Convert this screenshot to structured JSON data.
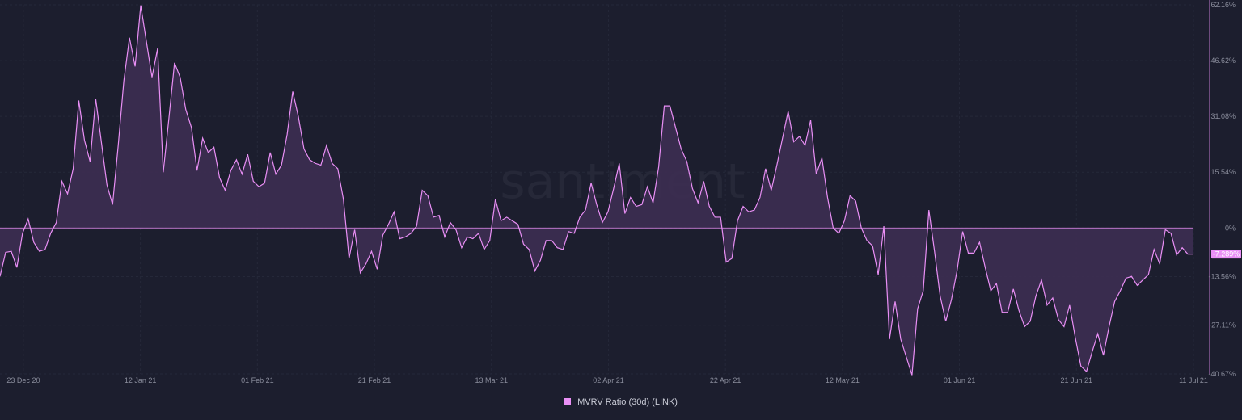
{
  "chart_data": {
    "type": "area",
    "title": "",
    "watermark": "santiment",
    "xlabel": "",
    "ylabel": "",
    "ylim": [
      -40.67,
      62.16
    ],
    "y_ticks": [
      "62.16%",
      "46.62%",
      "31.08%",
      "15.54%",
      "0%",
      "-13.56%",
      "-27.11%",
      "-40.67%"
    ],
    "y_tick_values": [
      62.16,
      46.62,
      31.08,
      15.54,
      0,
      -13.56,
      -27.11,
      -40.67
    ],
    "x_ticks": [
      "23 Dec 20",
      "12 Jan 21",
      "01 Feb 21",
      "21 Feb 21",
      "13 Mar 21",
      "02 Apr 21",
      "22 Apr 21",
      "12 May 21",
      "01 Jun 21",
      "21 Jun 21",
      "11 Jul 21"
    ],
    "x_start": "2020-12-19",
    "x_end": "2021-07-11",
    "last_value_label": "-7.289%",
    "colors": {
      "line": "#e98ff5",
      "fill": "#3d2d52",
      "badge": "#e98ff5"
    },
    "series": [
      {
        "name": "MVRV Ratio (30d) (LINK)",
        "values": [
          -13.5,
          -6.8,
          -6.5,
          -11,
          -1.5,
          2.5,
          -4,
          -6.5,
          -6,
          -1.5,
          1.5,
          13,
          9.5,
          16.5,
          35.5,
          24.5,
          18.5,
          36,
          24,
          12,
          6.5,
          23,
          41,
          53,
          45,
          62,
          52,
          42,
          50,
          15.5,
          30.5,
          46,
          42,
          33,
          28,
          16,
          25,
          21,
          22.5,
          14,
          10.5,
          16,
          19,
          15,
          20.5,
          13,
          11.5,
          12.5,
          21,
          15,
          17.5,
          26,
          38,
          31,
          22,
          19,
          18,
          17.5,
          23,
          18,
          16.5,
          8,
          -8.5,
          -0.5,
          -12.5,
          -10,
          -6.5,
          -11.5,
          -2,
          1,
          4.5,
          -3,
          -2.5,
          -1.5,
          0.5,
          10.5,
          9,
          3,
          3.5,
          -2.5,
          1.5,
          -0.5,
          -5.5,
          -2.5,
          -3,
          -1.5,
          -6,
          -3.5,
          8,
          2,
          3,
          2,
          1,
          -4.5,
          -6,
          -12,
          -9,
          -3.5,
          -3.5,
          -5.5,
          -6,
          -1,
          -1.5,
          3,
          5,
          12.5,
          6.5,
          1.5,
          4.5,
          11,
          18,
          4,
          8.5,
          6,
          6.5,
          11.5,
          7,
          17,
          34,
          34,
          28,
          22,
          18.5,
          11,
          7,
          13,
          6,
          3,
          3,
          -9.5,
          -8.5,
          2,
          6,
          4.5,
          5,
          8.5,
          16.5,
          10.5,
          17.5,
          25,
          32.5,
          24,
          25.5,
          23,
          30,
          15,
          19.5,
          8.5,
          0,
          -1.5,
          2,
          9,
          7.5,
          0,
          -3.5,
          -5,
          -13,
          0.5,
          -31,
          -20.5,
          -31,
          -36,
          -41,
          -22.5,
          -17.5,
          5,
          -6.5,
          -19,
          -26,
          -20,
          -12,
          -1,
          -7,
          -7,
          -4,
          -11,
          -17.5,
          -15.5,
          -23.5,
          -23.5,
          -17,
          -23,
          -27.5,
          -26,
          -19,
          -14.5,
          -21.5,
          -19.5,
          -25.5,
          -27.5,
          -21.5,
          -30.5,
          -38.5,
          -40,
          -34.5,
          -29.5,
          -35.5,
          -27.5,
          -20.5,
          -17.5,
          -14,
          -13.5,
          -16,
          -14.5,
          -13,
          -6,
          -10,
          -0.5,
          -1.5,
          -7.5,
          -5.5,
          -7.289,
          -7.289
        ]
      }
    ]
  },
  "legend": {
    "label": "MVRV Ratio (30d) (LINK)"
  }
}
